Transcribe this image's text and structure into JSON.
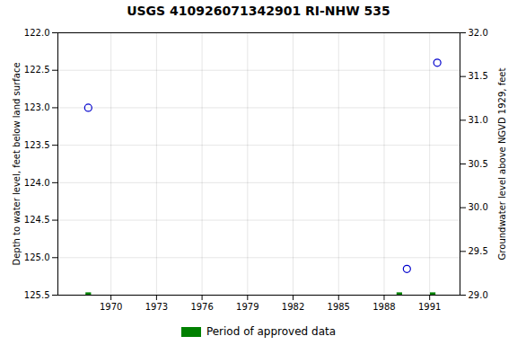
{
  "chart_data": {
    "type": "scatter",
    "title": "USGS 410926071342901 RI-NHW  535",
    "ylabel": "Depth to water level, feet below land surface",
    "y2label": "Groundwater level above NGVD 1929, feet",
    "series": [
      {
        "color": "#0000cc",
        "marker": "circle",
        "x": [
          1968.5,
          1989.5,
          1991.5
        ],
        "values": [
          123.0,
          125.15,
          122.4
        ]
      },
      {
        "name": "Period of approved data",
        "color": "#008000",
        "marker": "square",
        "x": [
          1968.5,
          1989.0,
          1991.2
        ],
        "values": [
          125.5,
          125.5,
          125.5
        ]
      }
    ],
    "xlim": [
      1966.5,
      1993.0
    ],
    "xticks": [
      1970,
      1973,
      1976,
      1979,
      1982,
      1985,
      1988,
      1991
    ],
    "ylim": [
      125.5,
      122.0
    ],
    "yticks": [
      {
        "value": 122,
        "label": "122.0"
      },
      122.5,
      {
        "value": 123,
        "label": "123.0"
      },
      123.5,
      {
        "value": 124,
        "label": "124.0"
      },
      124.5,
      {
        "value": 125,
        "label": "125.0"
      },
      125.5
    ],
    "y2lim": [
      29.0,
      32.0
    ],
    "y2ticks": [
      {
        "value": 29,
        "label": "29.0"
      },
      29.5,
      {
        "value": 30,
        "label": "30.0"
      },
      30.5,
      {
        "value": 31,
        "label": "31.0"
      },
      31.5,
      {
        "value": 32,
        "label": "32.0"
      }
    ],
    "grid": true,
    "legend": "bottom"
  }
}
